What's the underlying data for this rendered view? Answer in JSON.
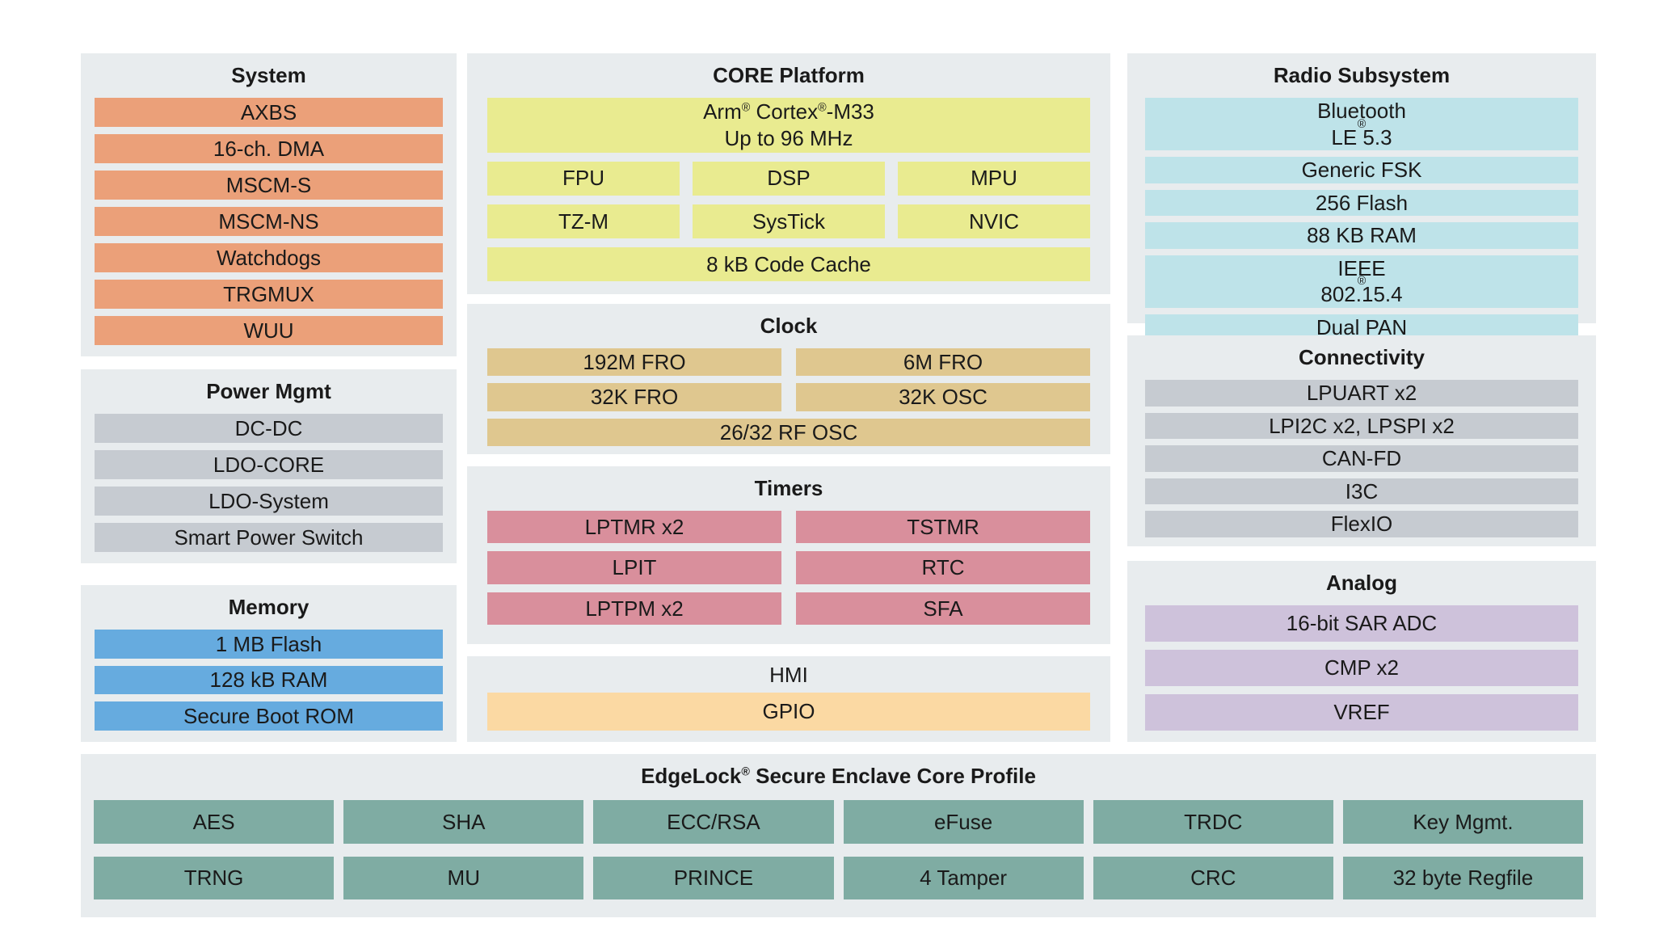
{
  "page": {
    "background": "#ffffff",
    "panel_background": "#E8ECEE",
    "text_color": "#1a1a1a"
  },
  "panels": {
    "system": {
      "title": "System",
      "color": "#EBA079",
      "items": [
        "AXBS",
        "16-ch. DMA",
        "MSCM-S",
        "MSCM-NS",
        "Watchdogs",
        "TRGMUX",
        "WUU"
      ]
    },
    "power": {
      "title": "Power Mgmt",
      "color": "#C6CBD1",
      "items": [
        "DC-DC",
        "LDO-CORE",
        "LDO-System",
        "Smart Power Switch"
      ]
    },
    "memory": {
      "title": "Memory",
      "color": "#66ABDF",
      "items": [
        "1 MB Flash",
        "128 kB RAM",
        "Secure Boot ROM"
      ]
    },
    "core": {
      "title": "CORE Platform",
      "color": "#E9EB90",
      "cpu_line1": "Arm® Cortex®-M33",
      "cpu_line2": "Up to 96 MHz",
      "grid": [
        "FPU",
        "DSP",
        "MPU",
        "TZ-M",
        "SysTick",
        "NVIC"
      ],
      "cache": "8 kB Code Cache"
    },
    "clock": {
      "title": "Clock",
      "color": "#DFC78F",
      "grid": [
        "192M FRO",
        "6M FRO",
        "32K FRO",
        "32K OSC"
      ],
      "wide": "26/32 RF OSC"
    },
    "timers": {
      "title": "Timers",
      "color": "#D98F9C",
      "grid": [
        "LPTMR x2",
        "TSTMR",
        "LPIT",
        "RTC",
        "LPTPM x2",
        "SFA"
      ]
    },
    "hmi": {
      "title": "HMI",
      "color": "#FBD9A3",
      "items": [
        "GPIO"
      ]
    },
    "radio": {
      "title": "Radio Subsystem",
      "color": "#BEE3E9",
      "items": [
        "Bluetooth® LE 5.3",
        "Generic FSK",
        "256 Flash",
        "88 KB RAM",
        "IEEE®802.15.4",
        "Dual PAN"
      ]
    },
    "connectivity": {
      "title": "Connectivity",
      "color": "#C6CBD1",
      "items": [
        "LPUART x2",
        "LPI2C x2, LPSPI x2",
        "CAN-FD",
        "I3C",
        "FlexIO"
      ]
    },
    "analog": {
      "title": "Analog",
      "color": "#CEC2DB",
      "items": [
        "16-bit SAR ADC",
        "CMP x2",
        "VREF"
      ]
    },
    "edgelock": {
      "title": "EdgeLock® Secure Enclave Core Profile",
      "color": "#7FACA3",
      "row1": [
        "AES",
        "SHA",
        "ECC/RSA",
        "eFuse",
        "TRDC",
        "Key Mgmt."
      ],
      "row2": [
        "TRNG",
        "MU",
        "PRINCE",
        "4 Tamper",
        "CRC",
        "32 byte Regfile"
      ]
    }
  }
}
